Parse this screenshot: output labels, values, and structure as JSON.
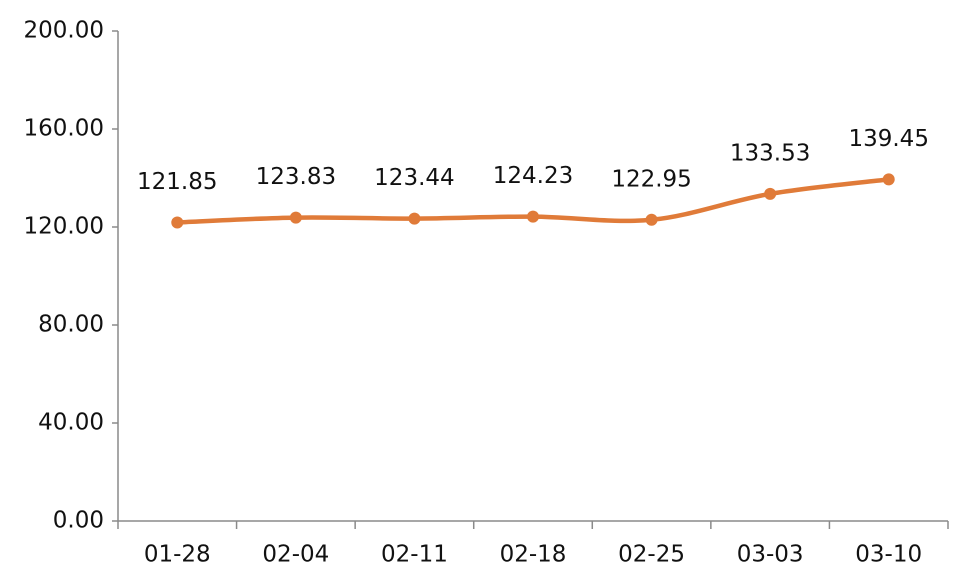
{
  "chart_data": {
    "type": "line",
    "categories": [
      "01-28",
      "02-04",
      "02-11",
      "02-18",
      "02-25",
      "03-03",
      "03-10"
    ],
    "values": [
      121.85,
      123.83,
      123.44,
      124.23,
      122.95,
      133.53,
      139.45
    ],
    "color": "#e07b39",
    "ylim": [
      0,
      200
    ],
    "yticks": [
      {
        "value": 0,
        "label": "0.00"
      },
      {
        "value": 40,
        "label": "40.00"
      },
      {
        "value": 80,
        "label": "80.00"
      },
      {
        "value": 120,
        "label": "120.00"
      },
      {
        "value": 160,
        "label": "160.00"
      },
      {
        "value": 200,
        "label": "200.00"
      }
    ],
    "smooth": true
  }
}
